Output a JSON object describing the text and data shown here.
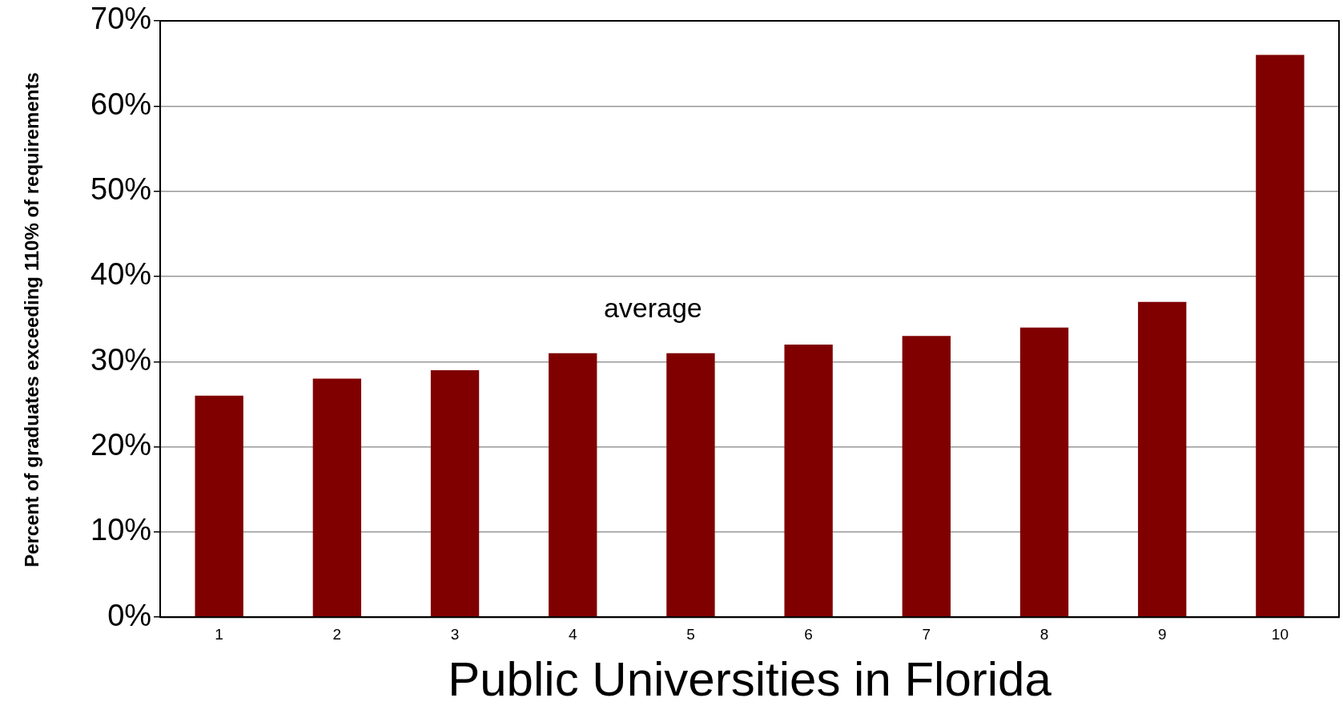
{
  "chart_data": {
    "type": "bar",
    "xlabel": "Public Universities in Florida",
    "ylabel": "Percent of graduates exceeding 110% of requirements",
    "categories": [
      "1",
      "2",
      "3",
      "4",
      "5",
      "6",
      "7",
      "8",
      "9",
      "10"
    ],
    "values": [
      26,
      28,
      29,
      31,
      31,
      32,
      33,
      34,
      37,
      66
    ],
    "color": "#800000",
    "ylim": [
      0,
      70
    ],
    "yticks": [
      {
        "value": 0,
        "label": "0%"
      },
      {
        "value": 10,
        "label": "10%"
      },
      {
        "value": 20,
        "label": "20%"
      },
      {
        "value": 30,
        "label": "30%"
      },
      {
        "value": 40,
        "label": "40%"
      },
      {
        "value": 50,
        "label": "50%"
      },
      {
        "value": 60,
        "label": "60%"
      },
      {
        "value": 70,
        "label": "70%"
      }
    ],
    "grid": "y",
    "legend": false,
    "annotations": [
      "average"
    ]
  }
}
